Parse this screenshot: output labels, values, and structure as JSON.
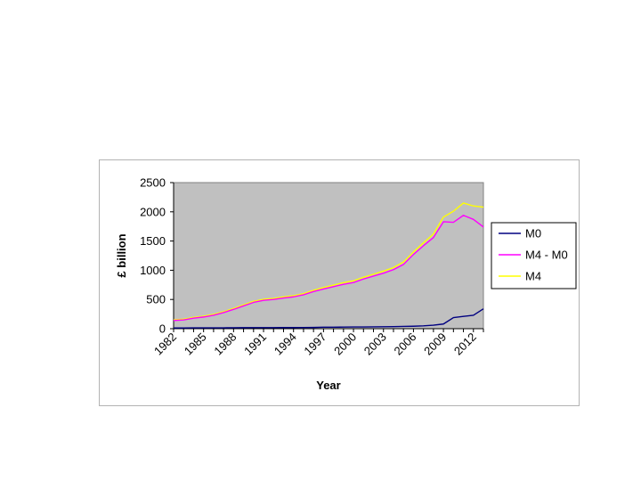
{
  "chart_data": {
    "type": "line",
    "title": "",
    "xlabel": "Year",
    "ylabel": "£ billion",
    "ylim": [
      0,
      2500
    ],
    "yticks": [
      0,
      500,
      1000,
      1500,
      2000,
      2500
    ],
    "xtick_labels": [
      "1982",
      "1985",
      "1988",
      "1991",
      "1994",
      "1997",
      "2000",
      "2003",
      "2006",
      "2009",
      "2012"
    ],
    "x": [
      1982,
      1983,
      1984,
      1985,
      1986,
      1987,
      1988,
      1989,
      1990,
      1991,
      1992,
      1993,
      1994,
      1995,
      1996,
      1997,
      1998,
      1999,
      2000,
      2001,
      2002,
      2003,
      2004,
      2005,
      2006,
      2007,
      2008,
      2009,
      2010,
      2011,
      2012,
      2013
    ],
    "legend_position": "right",
    "grid": false,
    "plot_background": "#c0c0c0",
    "series": [
      {
        "name": "M0",
        "color": "#000080",
        "values": [
          12,
          13,
          14,
          14,
          15,
          15,
          16,
          17,
          18,
          18,
          18,
          19,
          19,
          20,
          21,
          25,
          26,
          27,
          29,
          30,
          32,
          34,
          36,
          39,
          42,
          48,
          60,
          80,
          190,
          210,
          230,
          340
        ]
      },
      {
        "name": "M4 - M0",
        "color": "#ff00ff",
        "values": [
          140,
          150,
          180,
          200,
          230,
          275,
          330,
          390,
          450,
          485,
          500,
          525,
          545,
          580,
          635,
          680,
          720,
          760,
          790,
          850,
          900,
          950,
          1010,
          1100,
          1270,
          1420,
          1560,
          1830,
          1820,
          1940,
          1870,
          1740
        ]
      },
      {
        "name": "M4",
        "color": "#ffff00",
        "values": [
          152,
          163,
          194,
          214,
          245,
          290,
          346,
          407,
          468,
          503,
          518,
          544,
          564,
          600,
          656,
          705,
          746,
          787,
          819,
          880,
          932,
          984,
          1046,
          1139,
          1312,
          1468,
          1620,
          1910,
          2010,
          2150,
          2100,
          2080
        ]
      }
    ]
  }
}
